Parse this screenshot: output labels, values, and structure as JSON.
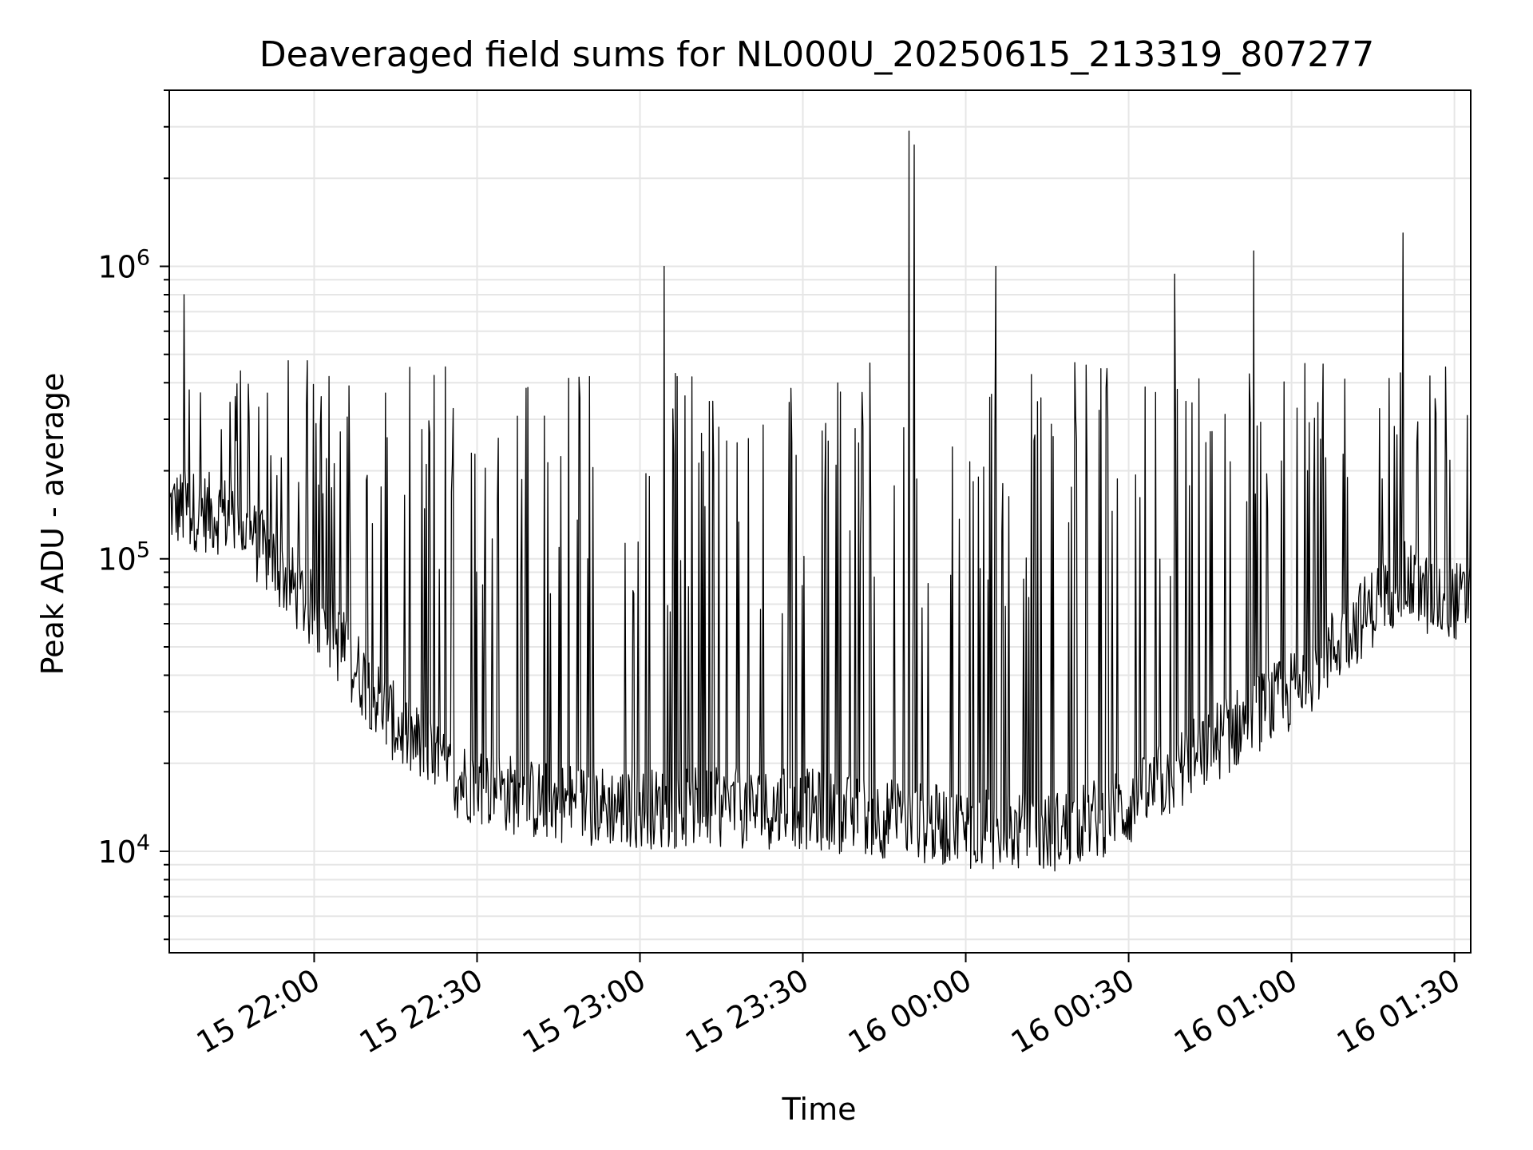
{
  "chart_data": {
    "type": "line",
    "title": "Deaveraged field sums for NL000U_20250615_213319_807277",
    "xlabel": "Time",
    "ylabel": "Peak ADU - average",
    "x_range": [
      "2025-06-15 21:33:19",
      "2025-06-16 01:33:00"
    ],
    "ylim": [
      4500,
      4000000
    ],
    "yscale": "log",
    "grid": true,
    "line_color": "#000000",
    "grid_color": "#e6e6e6",
    "x_ticks": [
      {
        "time": "2025-06-15 22:00:00",
        "label": "15 22:00"
      },
      {
        "time": "2025-06-15 22:30:00",
        "label": "15 22:30"
      },
      {
        "time": "2025-06-15 23:00:00",
        "label": "15 23:00"
      },
      {
        "time": "2025-06-15 23:30:00",
        "label": "15 23:30"
      },
      {
        "time": "2025-06-16 00:00:00",
        "label": "16 00:00"
      },
      {
        "time": "2025-06-16 00:30:00",
        "label": "16 00:30"
      },
      {
        "time": "2025-06-16 01:00:00",
        "label": "16 01:00"
      },
      {
        "time": "2025-06-16 01:30:00",
        "label": "16 01:30"
      }
    ],
    "y_ticks": [
      {
        "value": 10000,
        "base": "10",
        "exp": "4"
      },
      {
        "value": 100000,
        "base": "10",
        "exp": "5"
      },
      {
        "value": 1000000,
        "base": "10",
        "exp": "6"
      }
    ],
    "series": [
      {
        "baseline": [
          {
            "time": "2025-06-15 21:33:19",
            "value": 150000
          },
          {
            "time": "2025-06-15 21:45:00",
            "value": 140000
          },
          {
            "time": "2025-06-15 21:55:00",
            "value": 85000
          },
          {
            "time": "2025-06-15 22:05:00",
            "value": 50000
          },
          {
            "time": "2025-06-15 22:15:00",
            "value": 27000
          },
          {
            "time": "2025-06-15 22:25:00",
            "value": 18000
          },
          {
            "time": "2025-06-15 22:40:00",
            "value": 15000
          },
          {
            "time": "2025-06-15 23:00:00",
            "value": 14000
          },
          {
            "time": "2025-06-15 23:30:00",
            "value": 14000
          },
          {
            "time": "2025-06-16 00:00:00",
            "value": 12000
          },
          {
            "time": "2025-06-16 00:15:00",
            "value": 11500
          },
          {
            "time": "2025-06-16 00:30:00",
            "value": 14000
          },
          {
            "time": "2025-06-16 00:45:00",
            "value": 23000
          },
          {
            "time": "2025-06-16 01:00:00",
            "value": 35000
          },
          {
            "time": "2025-06-16 01:10:00",
            "value": 55000
          },
          {
            "time": "2025-06-16 01:20:00",
            "value": 85000
          },
          {
            "time": "2025-06-16 01:25:00",
            "value": 75000
          },
          {
            "time": "2025-06-16 01:33:00",
            "value": 70000
          }
        ],
        "peaks": [
          {
            "time": "2025-06-15 21:36:00",
            "value": 800000
          },
          {
            "time": "2025-06-15 23:04:30",
            "value": 1000000
          },
          {
            "time": "2025-06-15 23:49:30",
            "value": 2900000
          },
          {
            "time": "2025-06-15 23:50:30",
            "value": 2600000
          },
          {
            "time": "2025-06-16 00:05:30",
            "value": 1000000
          },
          {
            "time": "2025-06-16 00:38:30",
            "value": 940000
          },
          {
            "time": "2025-06-16 00:53:00",
            "value": 1130000
          },
          {
            "time": "2025-06-16 01:20:30",
            "value": 1300000
          }
        ]
      }
    ]
  }
}
